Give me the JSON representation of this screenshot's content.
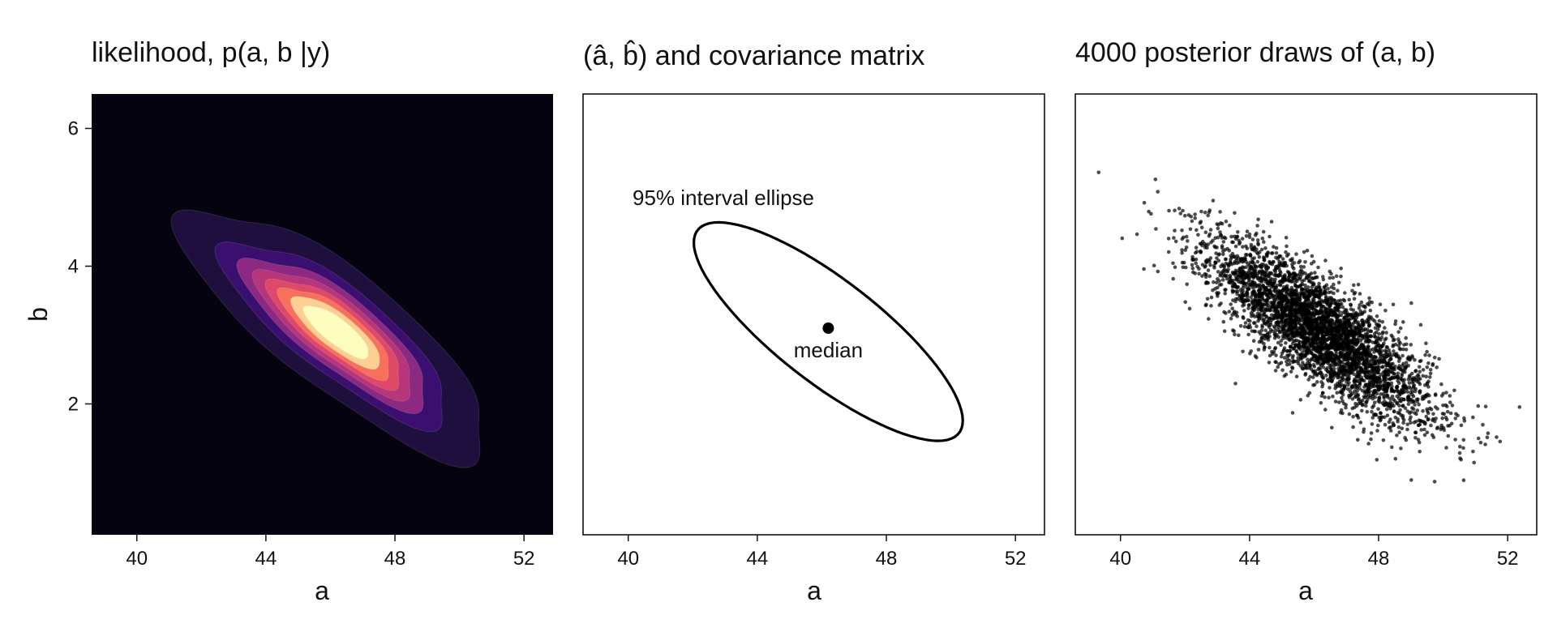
{
  "chart_data": [
    {
      "type": "heatmap",
      "title": "likelihood, p(a, b |y)",
      "xlabel": "a",
      "ylabel": "b",
      "xlim": [
        38.6,
        52.9
      ],
      "ylim": [
        0.1,
        6.5
      ],
      "xticks": [
        40,
        44,
        48,
        52
      ],
      "yticks": [
        2,
        4,
        6
      ],
      "colormap": "magma",
      "background": "#04030f",
      "mode": [
        46.2,
        3.05
      ],
      "covariance": [
        [
          2.9,
          -0.9
        ],
        [
          -0.9,
          0.42
        ]
      ],
      "contour_levels": [
        0.02,
        0.12,
        0.24,
        0.36,
        0.48,
        0.6,
        0.72,
        0.84
      ]
    },
    {
      "type": "scatter",
      "title": "(â, b̂) and covariance matrix",
      "xlabel": "a",
      "xlim": [
        38.6,
        52.9
      ],
      "ylim": [
        0.1,
        6.5
      ],
      "xticks": [
        40,
        44,
        48,
        52
      ],
      "points": [
        {
          "x": 46.2,
          "y": 3.1,
          "label": "median"
        }
      ],
      "ellipse": {
        "label": "95% interval ellipse",
        "center": [
          46.2,
          3.05
        ],
        "covariance": [
          [
            2.9,
            -0.9
          ],
          [
            -0.9,
            0.42
          ]
        ],
        "chi2": 5.99
      }
    },
    {
      "type": "scatter",
      "title": "4000 posterior draws of (a, b)",
      "xlabel": "a",
      "xlim": [
        38.6,
        52.9
      ],
      "ylim": [
        0.1,
        6.5
      ],
      "xticks": [
        40,
        44,
        48,
        52
      ],
      "n_points": 4000,
      "mean": [
        46.2,
        3.05
      ],
      "covariance": [
        [
          2.9,
          -0.9
        ],
        [
          -0.9,
          0.42
        ]
      ],
      "point_color": "#000000"
    }
  ],
  "colors": {
    "magma": [
      "#04030f",
      "#1e0f3e",
      "#3b0f70",
      "#641a80",
      "#8c2981",
      "#b63679",
      "#de4968",
      "#f7705c",
      "#fe9f6d",
      "#fecf92",
      "#fcfdbf"
    ]
  }
}
